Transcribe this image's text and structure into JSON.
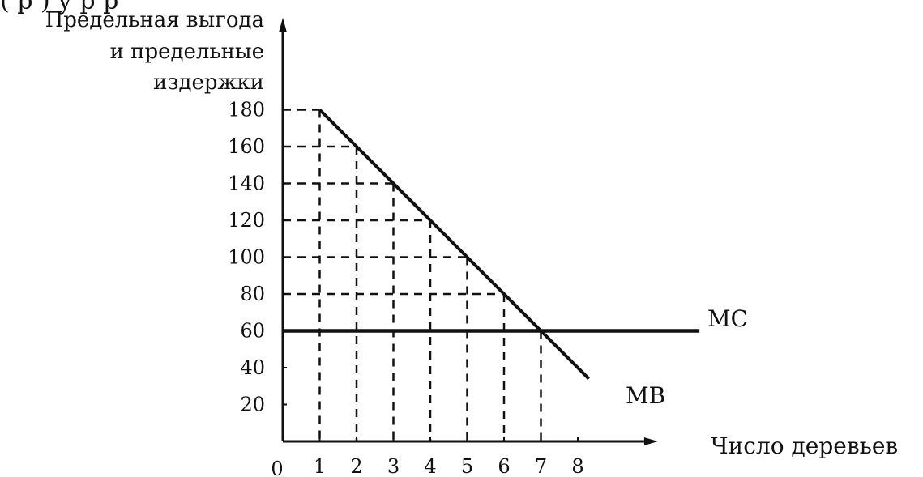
{
  "top_text": "(       р       )              у                 р                        р",
  "chart_data": {
    "type": "line",
    "ylabel_lines": [
      "Предельная выгода",
      "и предельные",
      "издержки"
    ],
    "xlabel": "Число деревьев",
    "origin_label": "0",
    "x_ticks": [
      1,
      2,
      3,
      4,
      5,
      6,
      7,
      8
    ],
    "y_ticks": [
      20,
      40,
      60,
      80,
      100,
      120,
      140,
      160,
      180
    ],
    "xlim": [
      0,
      9.8
    ],
    "ylim": [
      0,
      200
    ],
    "series": [
      {
        "name": "MB",
        "x": [
          1,
          2,
          3,
          4,
          5,
          6,
          7,
          8,
          8.3
        ],
        "y": [
          180,
          160,
          140,
          120,
          100,
          80,
          60,
          40,
          34
        ]
      },
      {
        "name": "MC",
        "x": [
          0,
          11.3
        ],
        "y": [
          60,
          60
        ]
      }
    ],
    "guides": {
      "vertical_from": [
        1,
        2,
        3,
        4,
        5,
        6,
        7
      ],
      "horizontal_at": [
        180,
        160,
        140,
        120,
        100,
        80
      ]
    },
    "colors": {
      "ink": "#111111",
      "background": "#ffffff"
    }
  }
}
